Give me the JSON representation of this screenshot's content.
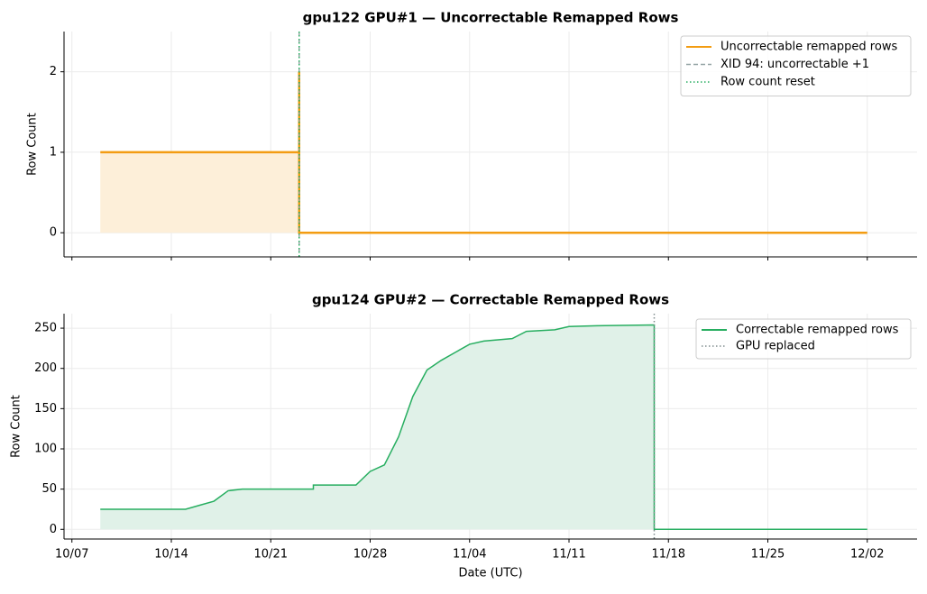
{
  "chart_data": [
    {
      "type": "line",
      "title": "gpu122 GPU#1 — Uncorrectable Remapped Rows",
      "ylabel": "Row Count",
      "x": [
        "10/09",
        "10/23",
        "10/23",
        "10/23",
        "12/02"
      ],
      "series": [
        {
          "name": "Uncorrectable remapped rows",
          "color": "#f39c12",
          "fill": "#fdefd9",
          "values": [
            1,
            1,
            2,
            0,
            0
          ]
        }
      ],
      "vlines": [
        {
          "x": "10/23",
          "name": "XID 94: uncorrectable +1",
          "color": "#95a5a6",
          "style": "dashed"
        },
        {
          "x": "10/23",
          "name": "Row count reset",
          "color": "#27ae60",
          "style": "dotted"
        }
      ],
      "xlim": [
        "10/06",
        "12/05"
      ],
      "ylim": [
        -0.3,
        2.5
      ],
      "yticks": [
        0,
        1,
        2
      ],
      "grid": true,
      "legend": "upper right"
    },
    {
      "type": "line",
      "title": "gpu124 GPU#2 — Correctable Remapped Rows",
      "ylabel": "Row Count",
      "xlabel": "Date (UTC)",
      "x": [
        "10/09",
        "10/15",
        "10/16",
        "10/17",
        "10/18",
        "10/19",
        "10/24",
        "10/24",
        "10/27",
        "10/28",
        "10/29",
        "10/30",
        "10/31",
        "11/01",
        "11/02",
        "11/03",
        "11/04",
        "11/05",
        "11/07",
        "11/08",
        "11/10",
        "11/11",
        "11/13",
        "11/17",
        "11/17",
        "12/02"
      ],
      "series": [
        {
          "name": "Correctable remapped rows",
          "color": "#27ae60",
          "fill": "#e0f1e8",
          "values": [
            25,
            25,
            30,
            35,
            48,
            50,
            50,
            55,
            55,
            72,
            80,
            115,
            165,
            198,
            210,
            220,
            230,
            234,
            237,
            246,
            248,
            252,
            253,
            254,
            0,
            0
          ]
        }
      ],
      "vlines": [
        {
          "x": "11/17",
          "name": "GPU replaced",
          "color": "#7f8c8d",
          "style": "dotted"
        }
      ],
      "xlim": [
        "10/06",
        "12/05"
      ],
      "xticks": [
        "10/07",
        "10/14",
        "10/21",
        "10/28",
        "11/04",
        "11/11",
        "11/18",
        "11/25",
        "12/02"
      ],
      "ylim": [
        -12,
        268
      ],
      "yticks": [
        0,
        50,
        100,
        150,
        200,
        250
      ],
      "grid": true,
      "legend": "upper right"
    }
  ]
}
